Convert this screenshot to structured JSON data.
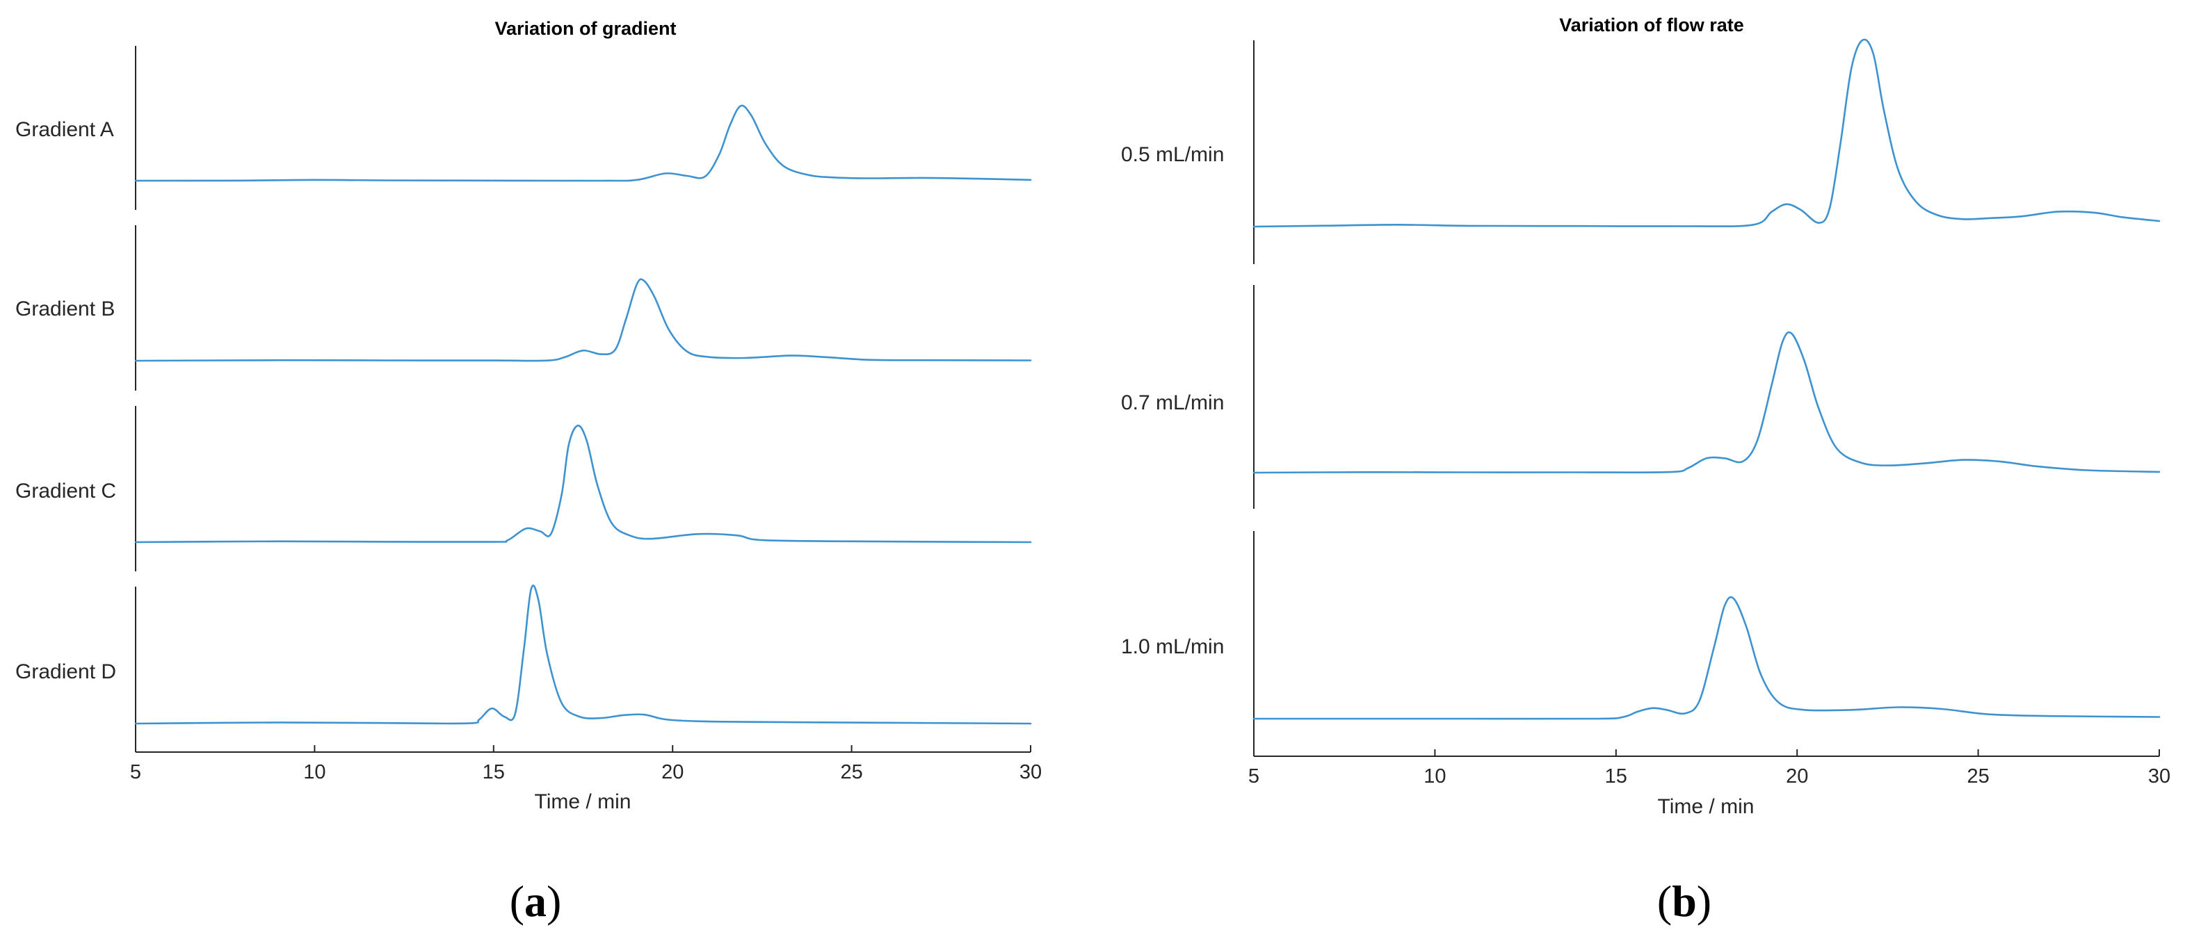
{
  "colors": {
    "trace": "#3d93d1",
    "axis": "#262626"
  },
  "panel_labels": {
    "a_open": "(",
    "a_letter": "a",
    "a_close": ")",
    "b_open": "(",
    "b_letter": "b",
    "b_close": ")"
  },
  "chart_data": [
    {
      "type": "line",
      "title": "Variation of gradient",
      "xlabel": "Time / min",
      "ylabel": "",
      "xlim": [
        5,
        30
      ],
      "x_ticks": [
        5,
        10,
        15,
        20,
        25,
        30
      ],
      "grid": false,
      "legend": "none",
      "series": [
        {
          "name": "Gradient A",
          "baseline": 0.0,
          "points": [
            [
              5,
              0.0
            ],
            [
              8,
              0.002
            ],
            [
              10,
              0.01
            ],
            [
              12,
              0.004
            ],
            [
              15,
              0.002
            ],
            [
              18,
              0.0
            ],
            [
              19,
              0.01
            ],
            [
              19.8,
              0.09
            ],
            [
              20.4,
              0.06
            ],
            [
              20.9,
              0.05
            ],
            [
              21.3,
              0.32
            ],
            [
              21.6,
              0.68
            ],
            [
              21.9,
              0.92
            ],
            [
              22.2,
              0.8
            ],
            [
              22.6,
              0.45
            ],
            [
              23.1,
              0.18
            ],
            [
              23.8,
              0.07
            ],
            [
              24.5,
              0.04
            ],
            [
              25.5,
              0.03
            ],
            [
              27,
              0.035
            ],
            [
              28.5,
              0.025
            ],
            [
              30,
              0.01
            ]
          ]
        },
        {
          "name": "Gradient B",
          "baseline": 0.0,
          "points": [
            [
              5,
              0.0
            ],
            [
              9,
              0.006
            ],
            [
              12,
              0.004
            ],
            [
              15,
              0.003
            ],
            [
              16.5,
              0.002
            ],
            [
              17.0,
              0.04
            ],
            [
              17.5,
              0.11
            ],
            [
              18.0,
              0.07
            ],
            [
              18.4,
              0.12
            ],
            [
              18.7,
              0.45
            ],
            [
              19.0,
              0.82
            ],
            [
              19.2,
              0.86
            ],
            [
              19.5,
              0.68
            ],
            [
              19.9,
              0.33
            ],
            [
              20.4,
              0.1
            ],
            [
              21.0,
              0.04
            ],
            [
              22.0,
              0.03
            ],
            [
              23.3,
              0.055
            ],
            [
              24.2,
              0.04
            ],
            [
              25.5,
              0.01
            ],
            [
              27,
              0.006
            ],
            [
              30,
              0.004
            ]
          ]
        },
        {
          "name": "Gradient C",
          "baseline": 0.0,
          "points": [
            [
              5,
              0.0
            ],
            [
              9,
              0.006
            ],
            [
              12,
              0.003
            ],
            [
              15,
              0.002
            ],
            [
              15.4,
              0.015
            ],
            [
              15.9,
              0.1
            ],
            [
              16.3,
              0.08
            ],
            [
              16.6,
              0.06
            ],
            [
              16.9,
              0.35
            ],
            [
              17.1,
              0.72
            ],
            [
              17.35,
              0.86
            ],
            [
              17.6,
              0.75
            ],
            [
              17.9,
              0.42
            ],
            [
              18.3,
              0.14
            ],
            [
              18.8,
              0.05
            ],
            [
              19.4,
              0.025
            ],
            [
              20.7,
              0.06
            ],
            [
              21.8,
              0.05
            ],
            [
              22.5,
              0.015
            ],
            [
              25,
              0.006
            ],
            [
              30,
              0.0
            ]
          ]
        },
        {
          "name": "Gradient D",
          "baseline": 0.0,
          "points": [
            [
              5,
              0.0
            ],
            [
              9,
              0.008
            ],
            [
              12,
              0.004
            ],
            [
              14.3,
              0.002
            ],
            [
              14.6,
              0.03
            ],
            [
              14.95,
              0.11
            ],
            [
              15.3,
              0.05
            ],
            [
              15.6,
              0.07
            ],
            [
              15.85,
              0.55
            ],
            [
              16.05,
              0.98
            ],
            [
              16.25,
              0.9
            ],
            [
              16.5,
              0.5
            ],
            [
              16.9,
              0.15
            ],
            [
              17.4,
              0.05
            ],
            [
              18.0,
              0.04
            ],
            [
              18.6,
              0.06
            ],
            [
              19.2,
              0.065
            ],
            [
              20.0,
              0.025
            ],
            [
              22,
              0.012
            ],
            [
              26,
              0.006
            ],
            [
              30,
              0.0
            ]
          ]
        }
      ],
      "row_labels": [
        "Gradient A",
        "Gradient B",
        "Gradient C",
        "Gradient D"
      ]
    },
    {
      "type": "line",
      "title": "Variation of flow rate",
      "xlabel": "Time / min",
      "ylabel": "",
      "xlim": [
        5,
        30
      ],
      "x_ticks": [
        5,
        10,
        15,
        20,
        25,
        30
      ],
      "grid": false,
      "legend": "none",
      "series": [
        {
          "name": "0.5 mL/min",
          "baseline": 0.0,
          "points": [
            [
              5,
              0.0
            ],
            [
              7,
              0.005
            ],
            [
              9,
              0.01
            ],
            [
              11,
              0.004
            ],
            [
              14,
              0.003
            ],
            [
              17,
              0.002
            ],
            [
              18.8,
              0.01
            ],
            [
              19.3,
              0.08
            ],
            [
              19.7,
              0.12
            ],
            [
              20.1,
              0.09
            ],
            [
              20.6,
              0.02
            ],
            [
              20.9,
              0.1
            ],
            [
              21.2,
              0.45
            ],
            [
              21.5,
              0.85
            ],
            [
              21.8,
              1.0
            ],
            [
              22.1,
              0.93
            ],
            [
              22.4,
              0.62
            ],
            [
              22.8,
              0.3
            ],
            [
              23.3,
              0.13
            ],
            [
              23.9,
              0.06
            ],
            [
              24.6,
              0.04
            ],
            [
              25.3,
              0.045
            ],
            [
              26.2,
              0.055
            ],
            [
              27.2,
              0.08
            ],
            [
              28.2,
              0.075
            ],
            [
              29.0,
              0.05
            ],
            [
              30,
              0.03
            ]
          ]
        },
        {
          "name": "0.7 mL/min",
          "baseline": 0.0,
          "points": [
            [
              5,
              0.0
            ],
            [
              8,
              0.003
            ],
            [
              11,
              0.002
            ],
            [
              14,
              0.002
            ],
            [
              16.5,
              0.004
            ],
            [
              17.0,
              0.03
            ],
            [
              17.5,
              0.09
            ],
            [
              18.0,
              0.09
            ],
            [
              18.5,
              0.07
            ],
            [
              18.9,
              0.2
            ],
            [
              19.3,
              0.55
            ],
            [
              19.6,
              0.82
            ],
            [
              19.85,
              0.87
            ],
            [
              20.2,
              0.7
            ],
            [
              20.6,
              0.4
            ],
            [
              21.1,
              0.15
            ],
            [
              21.8,
              0.06
            ],
            [
              22.6,
              0.045
            ],
            [
              23.6,
              0.06
            ],
            [
              24.6,
              0.08
            ],
            [
              25.6,
              0.07
            ],
            [
              26.6,
              0.04
            ],
            [
              28,
              0.015
            ],
            [
              30,
              0.005
            ]
          ]
        },
        {
          "name": "1.0 mL/min",
          "baseline": 0.0,
          "points": [
            [
              5,
              0.0
            ],
            [
              8,
              0.0
            ],
            [
              11,
              0.0
            ],
            [
              14.5,
              0.0
            ],
            [
              15.2,
              0.01
            ],
            [
              15.6,
              0.04
            ],
            [
              16.0,
              0.06
            ],
            [
              16.4,
              0.05
            ],
            [
              16.9,
              0.03
            ],
            [
              17.3,
              0.1
            ],
            [
              17.7,
              0.4
            ],
            [
              18.0,
              0.64
            ],
            [
              18.25,
              0.68
            ],
            [
              18.6,
              0.52
            ],
            [
              19.0,
              0.25
            ],
            [
              19.5,
              0.09
            ],
            [
              20.2,
              0.05
            ],
            [
              21.5,
              0.05
            ],
            [
              22.8,
              0.065
            ],
            [
              24.0,
              0.055
            ],
            [
              25.3,
              0.025
            ],
            [
              27,
              0.015
            ],
            [
              30,
              0.01
            ]
          ]
        }
      ],
      "row_labels": [
        "0.5 mL/min",
        "0.7 mL/min",
        "1.0 mL/min"
      ]
    }
  ]
}
